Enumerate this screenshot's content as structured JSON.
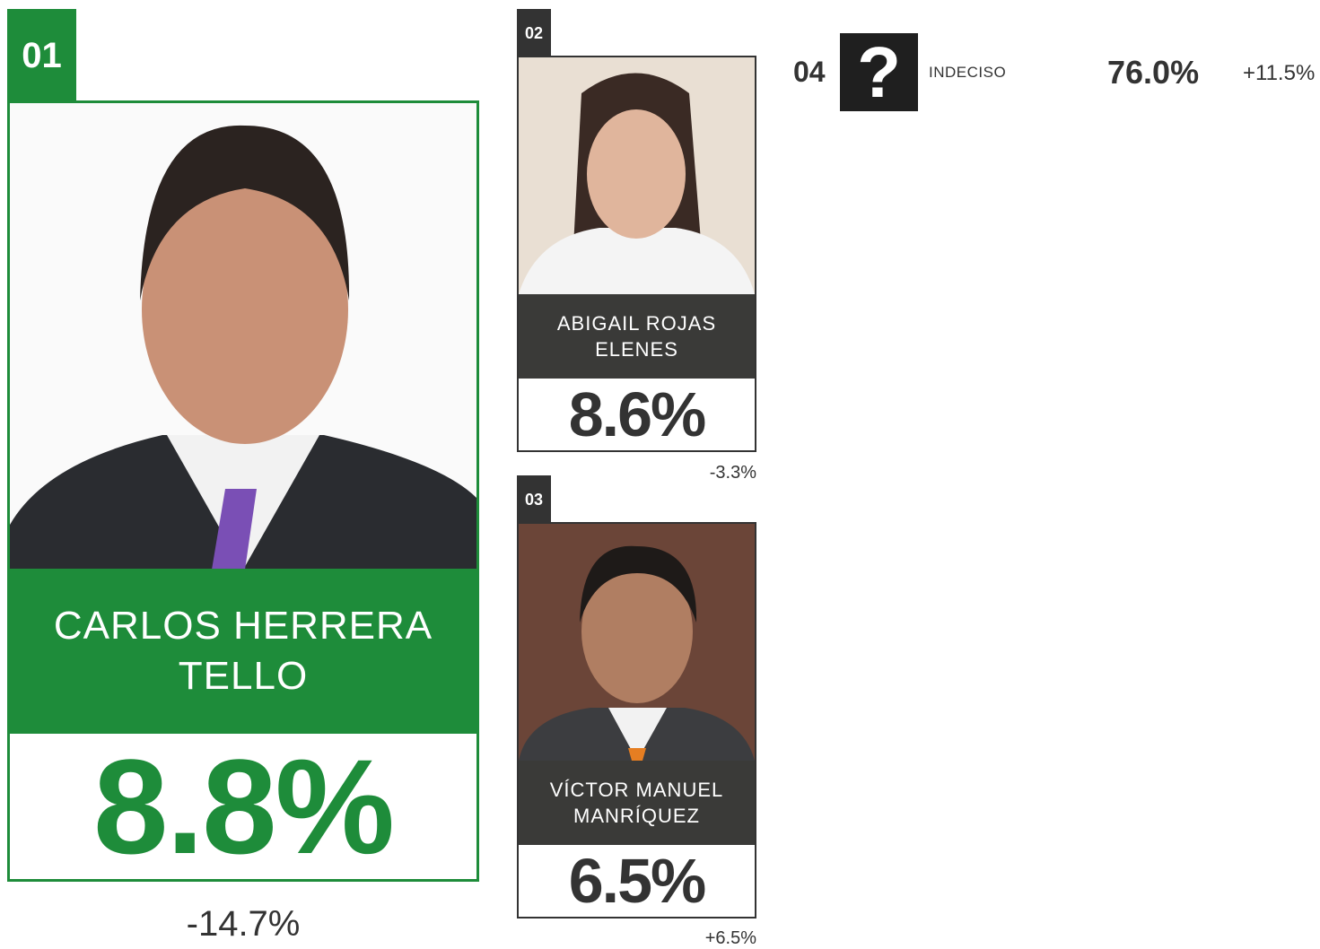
{
  "candidates": [
    {
      "rank": "01",
      "name": "CARLOS HERRERA TELLO",
      "value": "8.8%",
      "change": "-14.7%"
    },
    {
      "rank": "02",
      "name": "ABIGAIL ROJAS ELENES",
      "value": "8.6%",
      "change": "-3.3%"
    },
    {
      "rank": "03",
      "name": "VÍCTOR MANUEL MANRÍQUEZ",
      "value": "6.5%",
      "change": "+6.5%"
    }
  ],
  "undecided": {
    "rank": "04",
    "label": "INDECISO",
    "symbol": "?",
    "value": "76.0%",
    "change": "+11.5%"
  }
}
